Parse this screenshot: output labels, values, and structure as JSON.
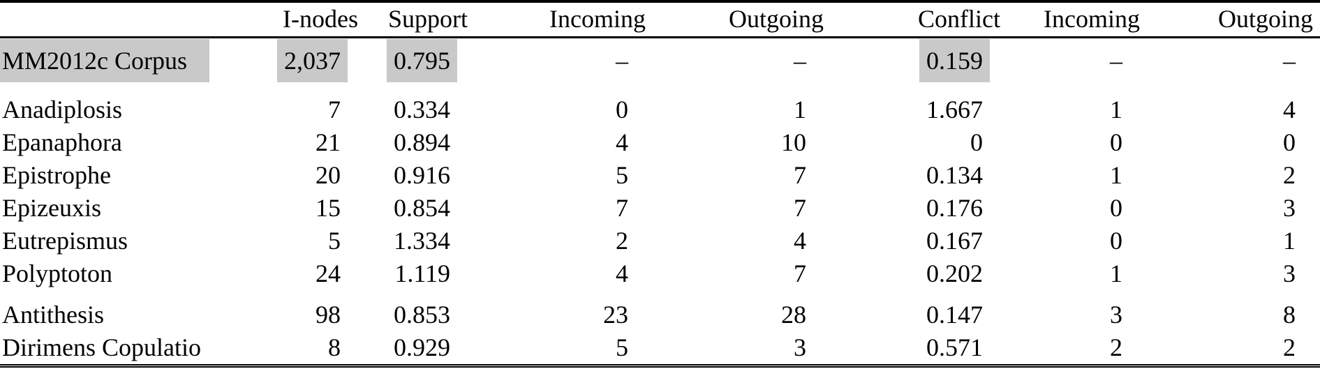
{
  "colors": {
    "highlight": "#c9c9c9",
    "rule": "#000000",
    "background": "#ffffff"
  },
  "table": {
    "header": {
      "row_label": "",
      "columns": [
        "I-nodes",
        "Support",
        "Incoming",
        "Outgoing",
        "Conflict",
        "Incoming",
        "Outgoing"
      ]
    },
    "groups": [
      {
        "name": "corpus",
        "rows": [
          {
            "label": "MM2012c Corpus",
            "label_highlight": true,
            "values": [
              "2,037",
              "0.795",
              "–",
              "–",
              "0.159",
              "–",
              "–"
            ],
            "highlight": [
              true,
              true,
              false,
              false,
              true,
              false,
              false
            ]
          }
        ]
      },
      {
        "name": "repetition-figures",
        "rows": [
          {
            "label": "Anadiplosis",
            "values": [
              "7",
              "0.334",
              "0",
              "1",
              "1.667",
              "1",
              "4"
            ]
          },
          {
            "label": "Epanaphora",
            "values": [
              "21",
              "0.894",
              "4",
              "10",
              "0",
              "0",
              "0"
            ]
          },
          {
            "label": "Epistrophe",
            "values": [
              "20",
              "0.916",
              "5",
              "7",
              "0.134",
              "1",
              "2"
            ]
          },
          {
            "label": "Epizeuxis",
            "values": [
              "15",
              "0.854",
              "7",
              "7",
              "0.176",
              "0",
              "3"
            ]
          },
          {
            "label": "Eutrepismus",
            "values": [
              "5",
              "1.334",
              "2",
              "4",
              "0.167",
              "0",
              "1"
            ]
          },
          {
            "label": "Polyptoton",
            "values": [
              "24",
              "1.119",
              "4",
              "7",
              "0.202",
              "1",
              "3"
            ]
          }
        ]
      },
      {
        "name": "other-figures",
        "rows": [
          {
            "label": "Antithesis",
            "values": [
              "98",
              "0.853",
              "23",
              "28",
              "0.147",
              "3",
              "8"
            ]
          },
          {
            "label": "Dirimens Copulatio",
            "values": [
              "8",
              "0.929",
              "5",
              "3",
              "0.571",
              "2",
              "2"
            ]
          }
        ]
      }
    ]
  }
}
